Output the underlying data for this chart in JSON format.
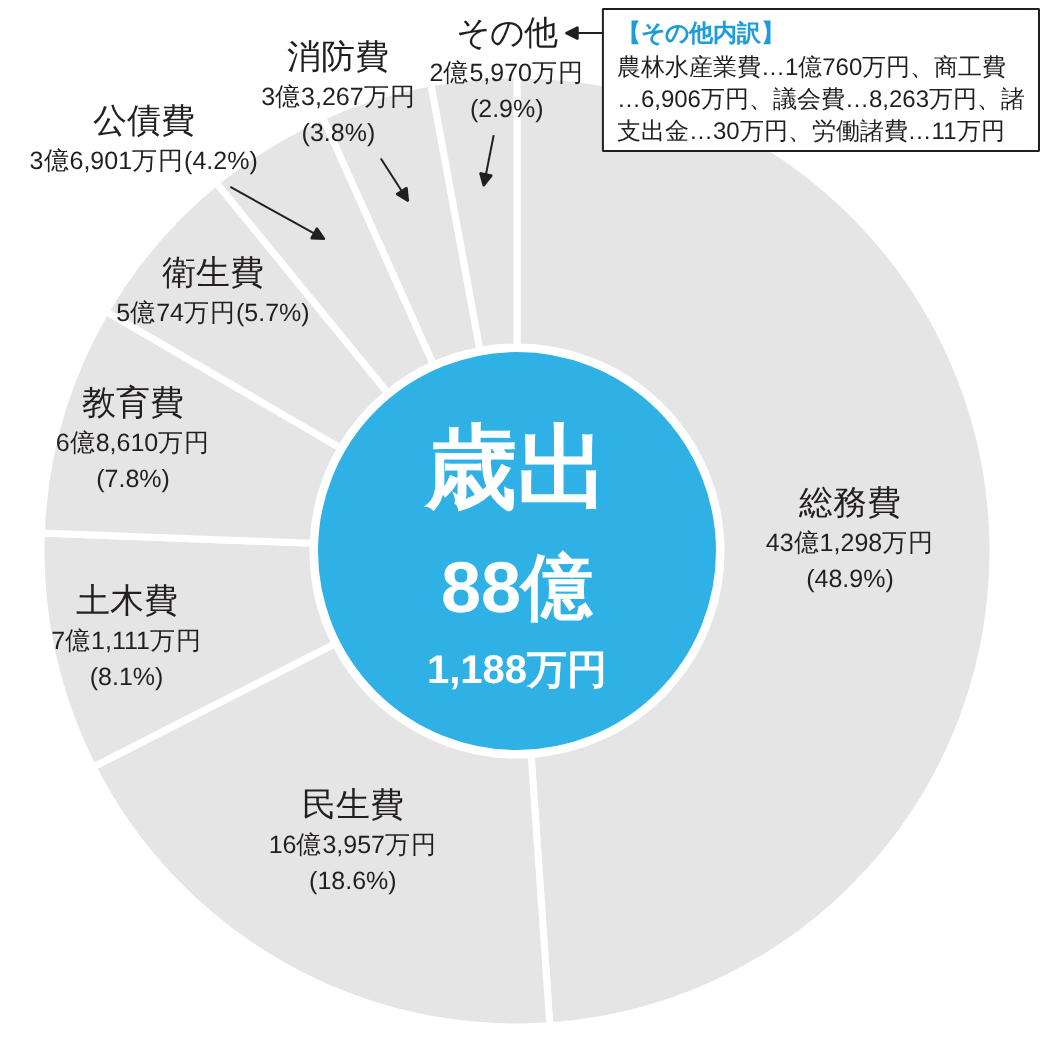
{
  "chart_data": {
    "type": "donut",
    "title": "歳出",
    "subtitle": "88億\n1,188万円",
    "categories": [
      "総務費",
      "民生費",
      "土木費",
      "教育費",
      "衛生費",
      "公債費",
      "消防費",
      "その他"
    ],
    "values": [
      48.9,
      18.6,
      8.1,
      7.8,
      5.7,
      4.2,
      3.8,
      2.9
    ],
    "colors": [
      "#e5e5e5",
      "#e5e5e5",
      "#e5e5e5",
      "#e5e5e5",
      "#e5e5e5",
      "#e5e5e5",
      "#e5e5e5",
      "#e5e5e5"
    ],
    "value_labels": [
      "43億1,298万円\n(48.9%)",
      "16億3,957万円\n(18.6%)",
      "7億1,111万円\n(8.1%)",
      "6億8,610万円\n(7.8%)",
      "5億74万円(5.7%)",
      "3億6,901万円(4.2%)",
      "3億3,267万円\n(3.8%)",
      "2億5,970万円\n(2.9%)"
    ],
    "annotations": [
      "【その他内訳】",
      "農林水産業費…1億760万円、商工費…6,906万円、議会費…8,263万円、諸支出金…30万円、労働諸費…11万円"
    ]
  }
}
